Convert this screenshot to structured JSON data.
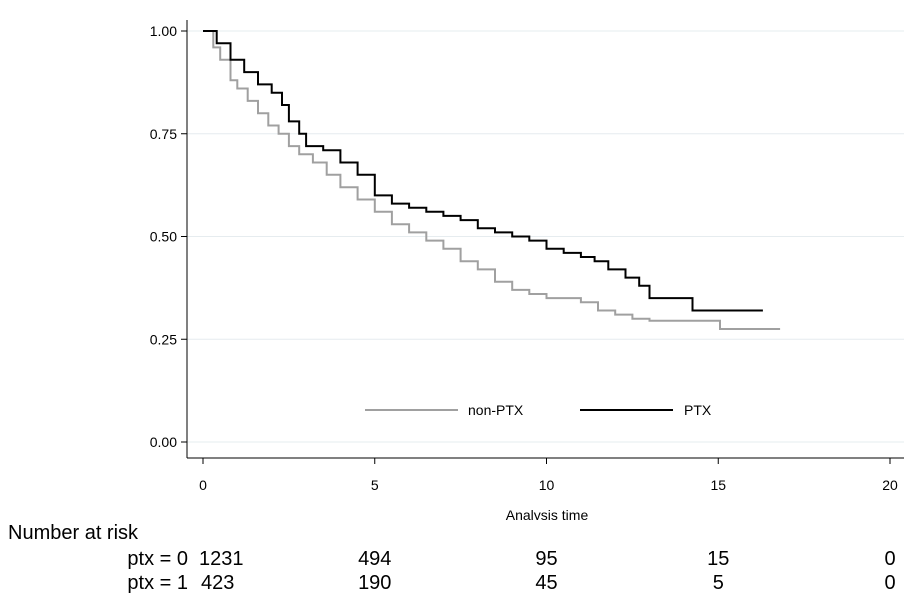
{
  "chart_data": {
    "type": "line",
    "xlabel": "Analysis time",
    "xticks": [
      0,
      5,
      10,
      15,
      20
    ],
    "xlim": [
      0,
      20
    ],
    "yticks": [
      "0.00",
      "0.25",
      "0.50",
      "0.75",
      "1.00"
    ],
    "ylim": [
      0,
      1
    ],
    "grid": "horizontal",
    "legend": "inside-bottom-center",
    "series": [
      {
        "name": "non-PTX",
        "color": "#a0a0a0",
        "points": [
          [
            0,
            1.0
          ],
          [
            0.3,
            0.96
          ],
          [
            0.5,
            0.93
          ],
          [
            0.8,
            0.88
          ],
          [
            1,
            0.86
          ],
          [
            1.3,
            0.83
          ],
          [
            1.6,
            0.8
          ],
          [
            1.9,
            0.77
          ],
          [
            2.2,
            0.75
          ],
          [
            2.5,
            0.72
          ],
          [
            2.8,
            0.7
          ],
          [
            3.2,
            0.68
          ],
          [
            3.6,
            0.65
          ],
          [
            4,
            0.62
          ],
          [
            4.5,
            0.59
          ],
          [
            5,
            0.56
          ],
          [
            5.5,
            0.53
          ],
          [
            6,
            0.51
          ],
          [
            6.5,
            0.49
          ],
          [
            7,
            0.47
          ],
          [
            7.5,
            0.44
          ],
          [
            8,
            0.42
          ],
          [
            8.5,
            0.39
          ],
          [
            9,
            0.37
          ],
          [
            9.5,
            0.36
          ],
          [
            10,
            0.35
          ],
          [
            10.5,
            0.35
          ],
          [
            11,
            0.34
          ],
          [
            11.5,
            0.32
          ],
          [
            12,
            0.31
          ],
          [
            12.5,
            0.3
          ],
          [
            13,
            0.295
          ],
          [
            15,
            0.295
          ],
          [
            15.05,
            0.275
          ],
          [
            16.8,
            0.275
          ]
        ]
      },
      {
        "name": "PTX",
        "color": "#000000",
        "points": [
          [
            0,
            1.0
          ],
          [
            0.4,
            0.97
          ],
          [
            0.8,
            0.93
          ],
          [
            1.2,
            0.9
          ],
          [
            1.6,
            0.87
          ],
          [
            2,
            0.85
          ],
          [
            2.3,
            0.82
          ],
          [
            2.5,
            0.78
          ],
          [
            2.8,
            0.75
          ],
          [
            3,
            0.72
          ],
          [
            3.5,
            0.71
          ],
          [
            4,
            0.68
          ],
          [
            4.5,
            0.65
          ],
          [
            5,
            0.6
          ],
          [
            5.5,
            0.58
          ],
          [
            6,
            0.57
          ],
          [
            6.5,
            0.56
          ],
          [
            7,
            0.55
          ],
          [
            7.5,
            0.54
          ],
          [
            8,
            0.52
          ],
          [
            8.5,
            0.51
          ],
          [
            9,
            0.5
          ],
          [
            9.5,
            0.49
          ],
          [
            10,
            0.47
          ],
          [
            10.5,
            0.46
          ],
          [
            11,
            0.45
          ],
          [
            11.4,
            0.44
          ],
          [
            11.8,
            0.42
          ],
          [
            12.3,
            0.4
          ],
          [
            12.7,
            0.38
          ],
          [
            13,
            0.35
          ],
          [
            14.2,
            0.35
          ],
          [
            14.25,
            0.32
          ],
          [
            16.3,
            0.32
          ]
        ]
      }
    ]
  },
  "risk_table": {
    "title": "Number at risk",
    "x_positions": [
      0,
      5,
      10,
      15,
      20
    ],
    "rows": [
      {
        "label": "ptx = 0",
        "values": [
          "1231",
          "494",
          "95",
          "15",
          "0"
        ]
      },
      {
        "label": "ptx = 1",
        "values": [
          "423",
          "190",
          "45",
          "5",
          "0"
        ]
      }
    ]
  }
}
